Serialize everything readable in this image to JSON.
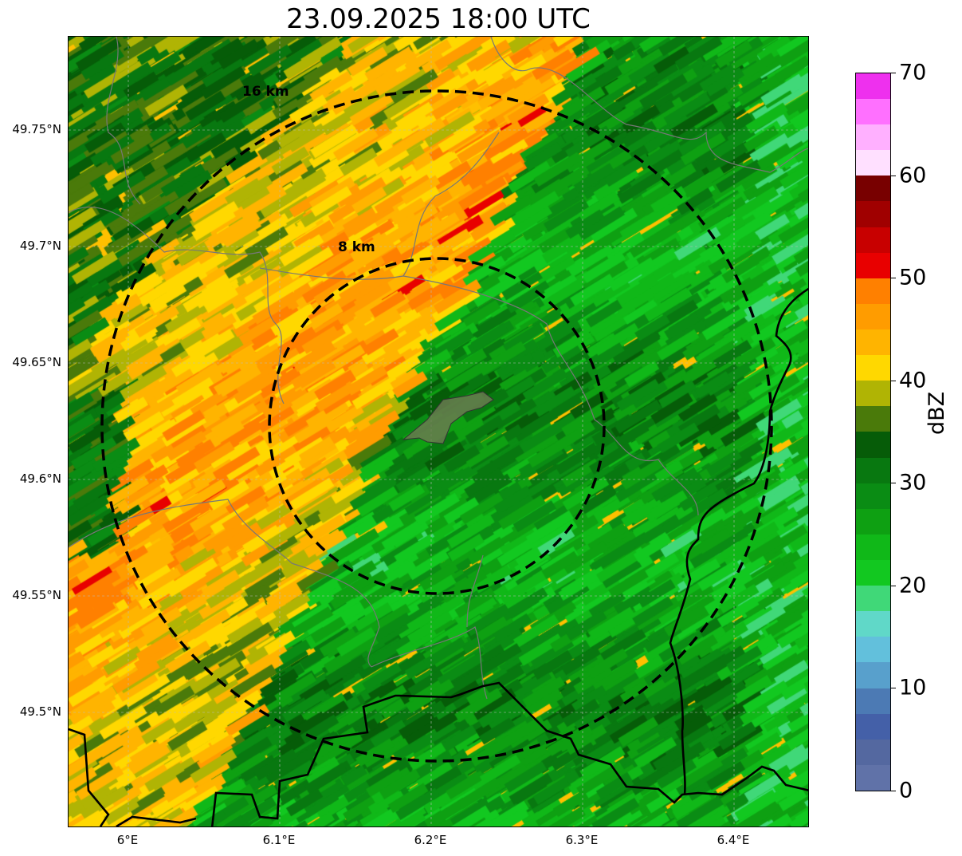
{
  "title": "23.09.2025 18:00 UTC",
  "x_ticks": [
    "6°E",
    "6.1°E",
    "6.2°E",
    "6.3°E",
    "6.4°E"
  ],
  "y_ticks": [
    "49.75°N",
    "49.7°N",
    "49.65°N",
    "49.6°N",
    "49.55°N",
    "49.5°N"
  ],
  "range_rings": [
    {
      "label": "16 km",
      "radius_km": 16
    },
    {
      "label": "8 km",
      "radius_km": 8
    }
  ],
  "colorbar": {
    "label": "dBZ",
    "ticks": [
      "0",
      "10",
      "20",
      "30",
      "40",
      "50",
      "60",
      "70"
    ],
    "min": 0,
    "max": 70,
    "step": 2.5,
    "colors": [
      "#6072a8",
      "#5468a0",
      "#4460a8",
      "#4c7ab4",
      "#58a0cc",
      "#62c0dc",
      "#60d8c8",
      "#40d878",
      "#12c820",
      "#10b818",
      "#0ea012",
      "#0a8c14",
      "#087810",
      "#065c08",
      "#4a7a0a",
      "#b0b404",
      "#ffd800",
      "#ffb400",
      "#ff9c00",
      "#ff8000",
      "#e80000",
      "#c80000",
      "#a00000",
      "#780000",
      "#ffe0ff",
      "#ffb0ff",
      "#ff70ff",
      "#ee30ee"
    ]
  }
}
